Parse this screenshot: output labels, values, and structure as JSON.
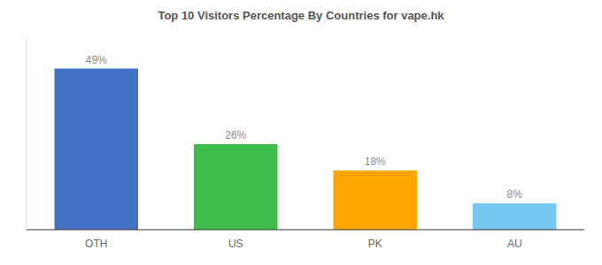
{
  "chart_data": {
    "type": "bar",
    "title": "Top 10 Visitors Percentage By Countries for vape.hk",
    "categories": [
      "OTH",
      "US",
      "PK",
      "AU"
    ],
    "values": [
      49,
      26,
      18,
      8
    ],
    "value_labels": [
      "49%",
      "26%",
      "18%",
      "8%"
    ],
    "colors": [
      "#4472C4",
      "#3DBD4A",
      "#FFA500",
      "#75C8F0"
    ],
    "ylim": [
      0,
      58
    ],
    "data_labels": true,
    "tick_labels": "x"
  }
}
